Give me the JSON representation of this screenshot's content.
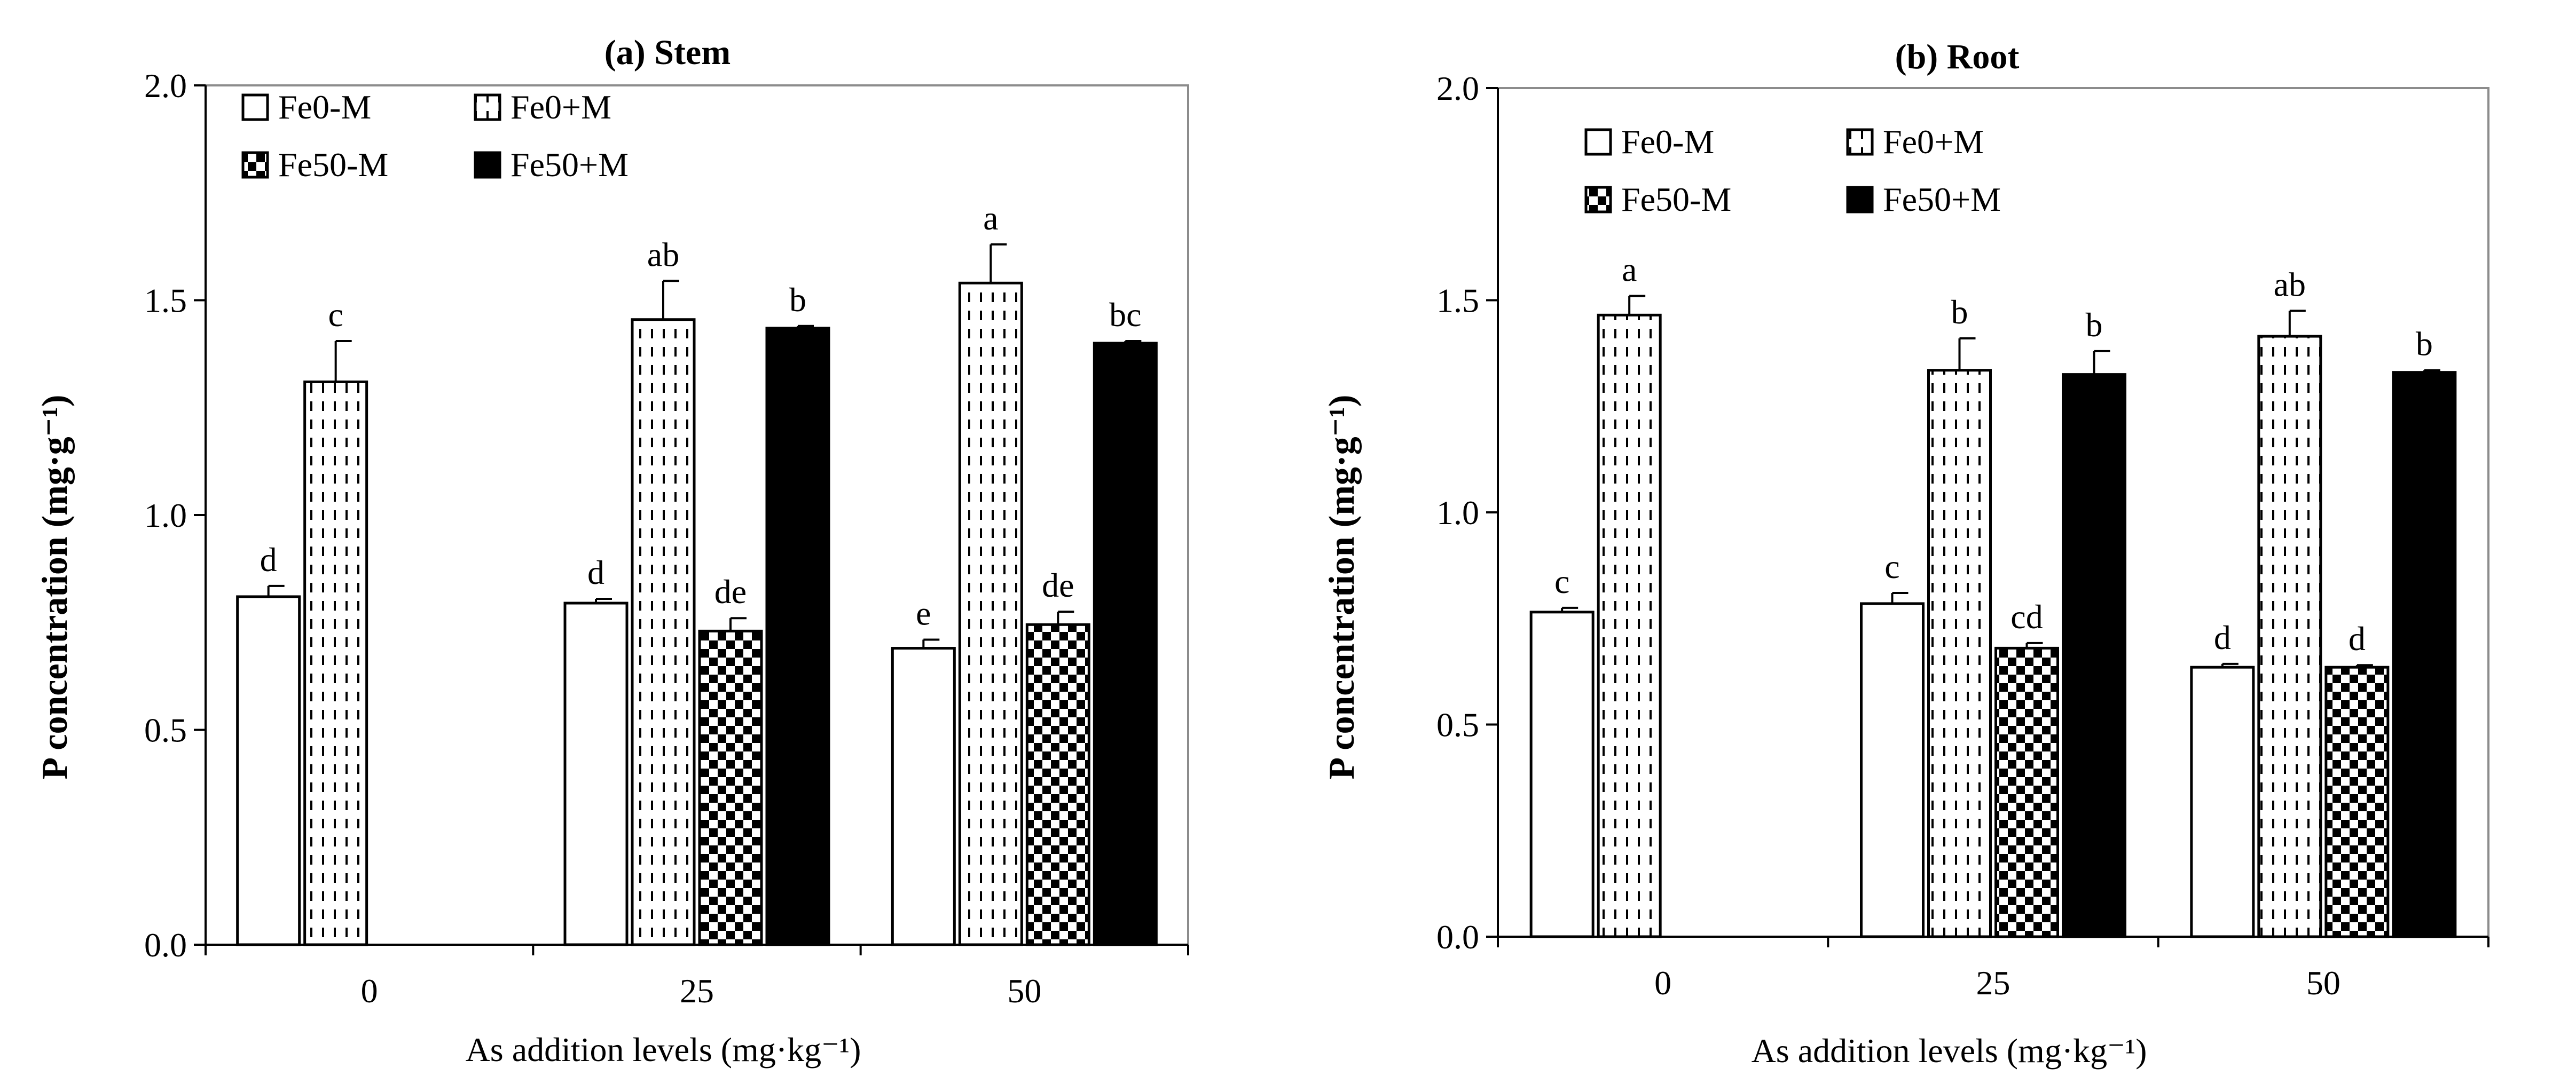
{
  "chart_data": [
    {
      "type": "bar",
      "title": "(a) Stem",
      "xlabel": "As addition levels (mg·kg⁻¹)",
      "ylabel": "P concentration (mg·g⁻¹)",
      "ylim": [
        0,
        2.0
      ],
      "yticks": [
        "0.0",
        "0.5",
        "1.0",
        "1.5",
        "2.0"
      ],
      "categories": [
        "0",
        "25",
        "50"
      ],
      "legend": {
        "placement": "top-left",
        "entries": [
          "Fe0-M",
          "Fe0+M",
          "Fe50-M",
          "Fe50+M"
        ]
      },
      "series": [
        {
          "name": "Fe0-M",
          "pattern": "white",
          "values": [
            0.81,
            0.795,
            0.69
          ],
          "errors": [
            0.025,
            0.01,
            0.02
          ],
          "labels": [
            "d",
            "d",
            "e"
          ]
        },
        {
          "name": "Fe0+M",
          "pattern": "dashed",
          "values": [
            1.31,
            1.455,
            1.54
          ],
          "errors": [
            0.095,
            0.09,
            0.09
          ],
          "labels": [
            "c",
            "ab",
            "a"
          ]
        },
        {
          "name": "Fe50-M",
          "pattern": "checker",
          "values": [
            null,
            0.73,
            0.745
          ],
          "errors": [
            null,
            0.03,
            0.03
          ],
          "labels": [
            null,
            "de",
            "de"
          ]
        },
        {
          "name": "Fe50+M",
          "pattern": "black",
          "values": [
            null,
            1.435,
            1.4
          ],
          "errors": [
            null,
            0.005,
            0.005
          ],
          "labels": [
            null,
            "b",
            "bc"
          ]
        }
      ]
    },
    {
      "type": "bar",
      "title": "(b) Root",
      "xlabel": "As addition levels (mg·kg⁻¹)",
      "ylabel": "P concentration (mg·g⁻¹)",
      "ylim": [
        0,
        2.0
      ],
      "yticks": [
        "0.0",
        "0.5",
        "1.0",
        "1.5",
        "2.0"
      ],
      "categories": [
        "0",
        "25",
        "50"
      ],
      "legend": {
        "placement": "top-left",
        "entries": [
          "Fe0-M",
          "Fe0+M",
          "Fe50-M",
          "Fe50+M"
        ]
      },
      "series": [
        {
          "name": "Fe0-M",
          "pattern": "white",
          "values": [
            0.765,
            0.785,
            0.635
          ],
          "errors": [
            0.01,
            0.025,
            0.008
          ],
          "labels": [
            "c",
            "c",
            "d"
          ]
        },
        {
          "name": "Fe0+M",
          "pattern": "dashed",
          "values": [
            1.465,
            1.335,
            1.415
          ],
          "errors": [
            0.045,
            0.075,
            0.06
          ],
          "labels": [
            "a",
            "b",
            "ab"
          ]
        },
        {
          "name": "Fe50-M",
          "pattern": "checker",
          "values": [
            null,
            0.68,
            0.635
          ],
          "errors": [
            null,
            0.012,
            0.005
          ],
          "labels": [
            null,
            "cd",
            "d"
          ]
        },
        {
          "name": "Fe50+M",
          "pattern": "black",
          "values": [
            null,
            1.325,
            1.33
          ],
          "errors": [
            null,
            0.055,
            0.005
          ],
          "labels": [
            null,
            "b",
            "b"
          ]
        }
      ]
    }
  ]
}
